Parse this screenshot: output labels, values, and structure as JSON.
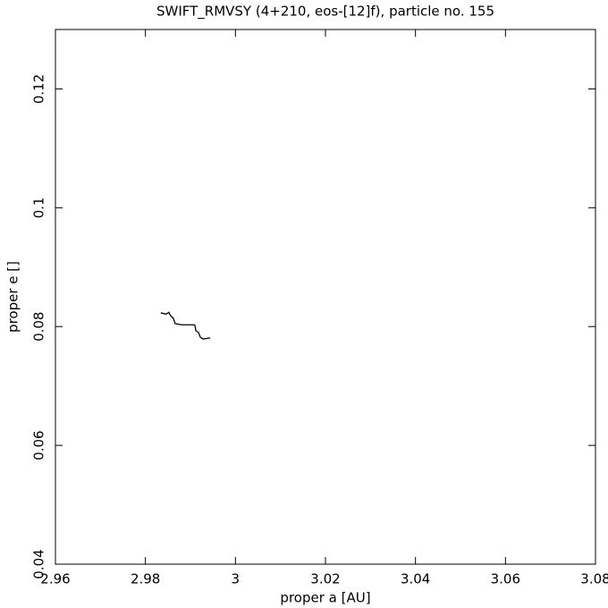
{
  "chart_data": {
    "type": "line",
    "title": "SWIFT_RMVSY (4+210, eos-[12]f), particle no. 155",
    "x_label": "proper a [AU]",
    "y_label": "proper e []",
    "x": [
      2.9834,
      2.9846,
      2.9852,
      2.9856,
      2.9862,
      2.9866,
      2.988,
      2.9908,
      2.991,
      2.9912,
      2.9918,
      2.9922,
      2.9928,
      2.9944
    ],
    "values": [
      0.0823,
      0.0821,
      0.0824,
      0.0818,
      0.0814,
      0.0805,
      0.0803,
      0.0803,
      0.0802,
      0.0793,
      0.079,
      0.0782,
      0.0779,
      0.0781
    ],
    "color": "#000000",
    "xlim": [
      2.96,
      3.08
    ],
    "xticks": [
      2.96,
      2.98,
      3,
      3.02,
      3.04,
      3.06,
      3.08
    ],
    "ylim": [
      0.04,
      0.13
    ],
    "yticks": [
      0.04,
      0.06,
      0.08,
      0.1,
      0.12
    ],
    "grid": false
  }
}
